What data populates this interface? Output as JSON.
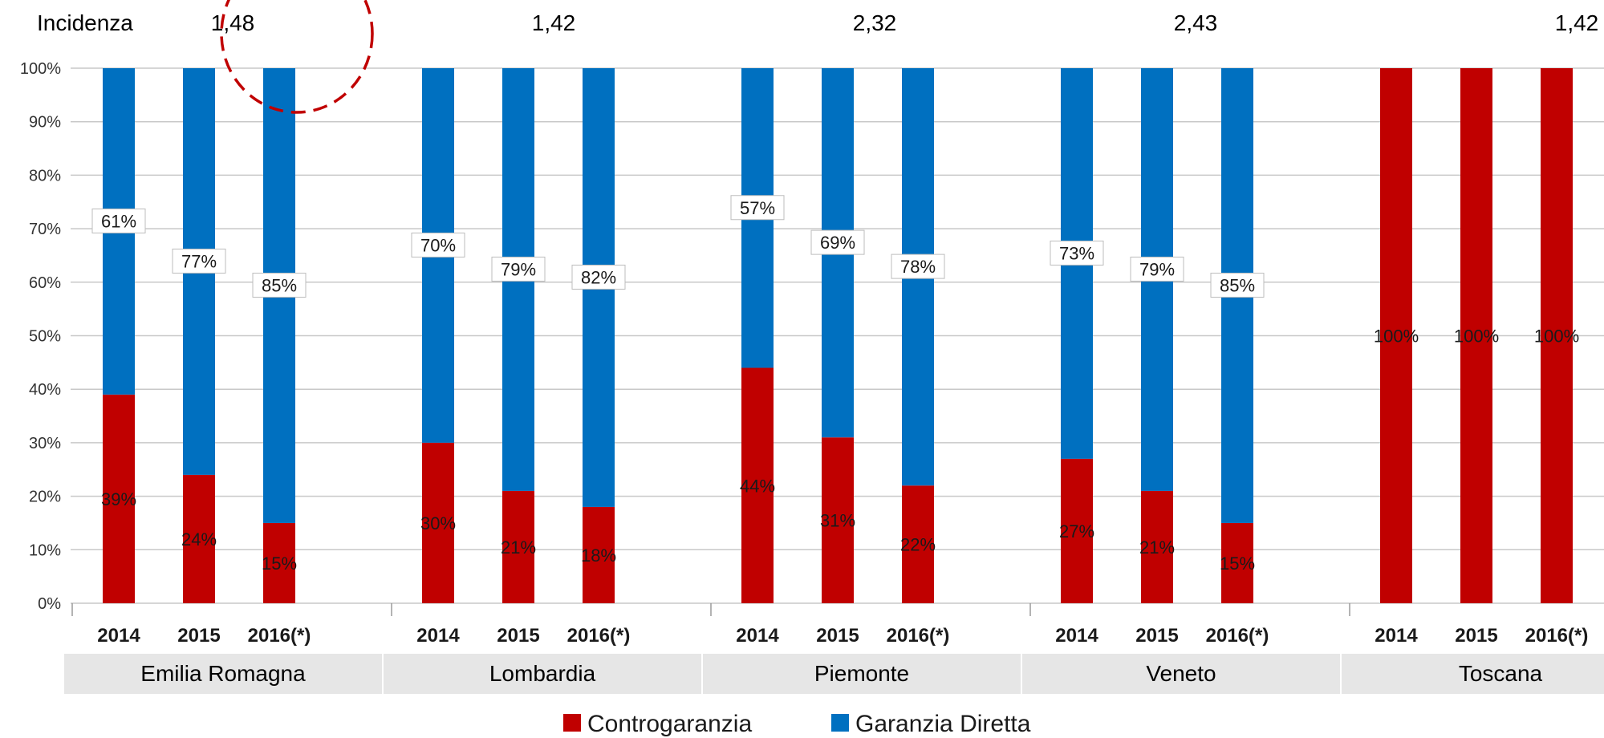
{
  "colors": {
    "controgaranzia": "#c00000",
    "garanzia_diretta": "#0070c0",
    "grid": "#c8c8c8",
    "region_band": "#e6e6e6",
    "highlight_circle": "#c00000"
  },
  "incidenza_label": "Incidenza",
  "incidenza_values": [
    "1,48",
    "1,42",
    "2,32",
    "2,43",
    "1,42"
  ],
  "highlighted_group": 0,
  "chart_data": {
    "type": "bar",
    "stacked": true,
    "y_axis": {
      "ylim": [
        0,
        100
      ],
      "ticks": [
        "0%",
        "10%",
        "20%",
        "30%",
        "40%",
        "50%",
        "60%",
        "70%",
        "80%",
        "90%",
        "100%"
      ],
      "grid": true
    },
    "legend": {
      "position": "bottom-center"
    },
    "series": [
      {
        "name": "Controgaranzia",
        "color": "#c00000"
      },
      {
        "name": "Garanzia Diretta",
        "color": "#0070c0"
      }
    ],
    "groups": [
      {
        "name": "Emilia Romagna",
        "incidenza": "1,48",
        "categories": [
          "2014",
          "2015",
          "2016(*)"
        ],
        "controgaranzia": [
          39,
          24,
          15
        ],
        "garanzia_diretta": [
          61,
          77,
          85
        ]
      },
      {
        "name": "Lombardia",
        "incidenza": "1,42",
        "categories": [
          "2014",
          "2015",
          "2016(*)"
        ],
        "controgaranzia": [
          30,
          21,
          18
        ],
        "garanzia_diretta": [
          70,
          79,
          82
        ]
      },
      {
        "name": "Piemonte",
        "incidenza": "2,32",
        "categories": [
          "2014",
          "2015",
          "2016(*)"
        ],
        "controgaranzia": [
          44,
          31,
          22
        ],
        "garanzia_diretta": [
          57,
          69,
          78
        ]
      },
      {
        "name": "Veneto",
        "incidenza": "2,43",
        "categories": [
          "2014",
          "2015",
          "2016(*)"
        ],
        "controgaranzia": [
          27,
          21,
          15
        ],
        "garanzia_diretta": [
          73,
          79,
          85
        ]
      },
      {
        "name": "Toscana",
        "incidenza": "1,42",
        "categories": [
          "2014",
          "2015",
          "2016(*)"
        ],
        "controgaranzia": [
          100,
          100,
          100
        ],
        "garanzia_diretta": [
          null,
          null,
          null
        ]
      }
    ]
  }
}
